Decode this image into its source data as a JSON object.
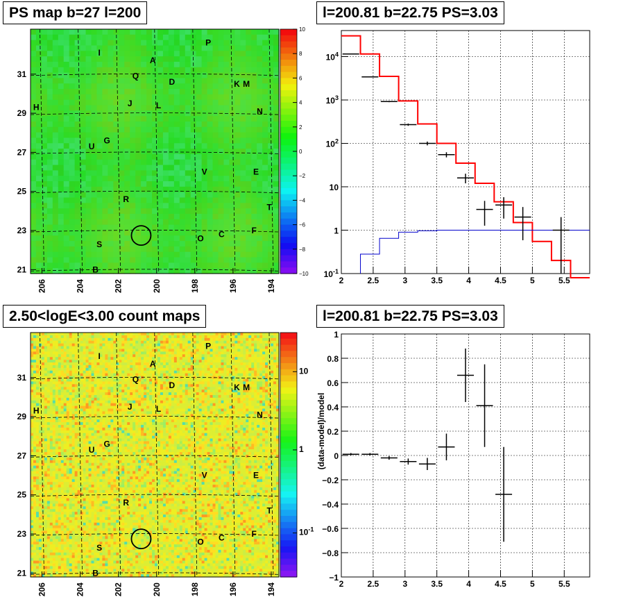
{
  "colors": {
    "map_green": "#33dd22",
    "count_yellow": "#ddee22",
    "model_red": "#ff0000",
    "bg_blue": "#0000cc",
    "data_black": "#000000"
  },
  "chart_data": [
    {
      "type": "heatmap",
      "title": "PS map b=27 l=200",
      "x_ticks": [
        "206",
        "204",
        "202",
        "200",
        "198",
        "196",
        "194"
      ],
      "y_ticks": [
        "31",
        "29",
        "27",
        "25",
        "23",
        "21"
      ],
      "colorbar_ticks": [
        "10",
        "8",
        "6",
        "4",
        "2",
        "0",
        "−2",
        "−4",
        "−6",
        "−8",
        "−10"
      ],
      "colorbar_range": [
        -10,
        10
      ],
      "sources": [
        {
          "label": "P",
          "l": 197.3,
          "b": 32.6
        },
        {
          "label": "I",
          "l": 203.0,
          "b": 32.1
        },
        {
          "label": "A",
          "l": 200.2,
          "b": 31.7
        },
        {
          "label": "Q",
          "l": 201.1,
          "b": 30.9
        },
        {
          "label": "D",
          "l": 199.2,
          "b": 30.6
        },
        {
          "label": "K",
          "l": 195.8,
          "b": 30.5
        },
        {
          "label": "M",
          "l": 195.3,
          "b": 30.5
        },
        {
          "label": "H",
          "l": 206.3,
          "b": 29.3
        },
        {
          "label": "J",
          "l": 201.4,
          "b": 29.5
        },
        {
          "label": "L",
          "l": 199.9,
          "b": 29.4
        },
        {
          "label": "N",
          "l": 194.6,
          "b": 29.1
        },
        {
          "label": "G",
          "l": 202.6,
          "b": 27.6
        },
        {
          "label": "U",
          "l": 203.4,
          "b": 27.3
        },
        {
          "label": "V",
          "l": 197.5,
          "b": 26.0
        },
        {
          "label": "E",
          "l": 194.8,
          "b": 26.0
        },
        {
          "label": "R",
          "l": 201.6,
          "b": 24.6
        },
        {
          "label": "T",
          "l": 194.1,
          "b": 24.2
        },
        {
          "label": "F",
          "l": 194.9,
          "b": 23.0
        },
        {
          "label": "C",
          "l": 196.6,
          "b": 22.8
        },
        {
          "label": "O",
          "l": 197.7,
          "b": 22.6
        },
        {
          "label": "S",
          "l": 203.0,
          "b": 22.3
        },
        {
          "label": "B",
          "l": 203.2,
          "b": 21.0
        }
      ],
      "circle": {
        "l": 200.81,
        "b": 22.75
      }
    },
    {
      "type": "line",
      "title": "l=200.81 b=22.75 PS=3.03",
      "xlabel": "",
      "ylabel": "",
      "x_ticks": [
        "2",
        "2.5",
        "3",
        "3.5",
        "4",
        "4.5",
        "5",
        "5.5"
      ],
      "y_ticks": [
        "10^4",
        "10^3",
        "10^2",
        "10",
        "1",
        "10^-1"
      ],
      "xlim": [
        2.0,
        5.9
      ],
      "ylim_log10": [
        -1,
        4.6
      ],
      "data_points": [
        {
          "x": 2.15,
          "y": 11500
        },
        {
          "x": 2.45,
          "y": 3400
        },
        {
          "x": 2.75,
          "y": 920
        },
        {
          "x": 3.05,
          "y": 270
        },
        {
          "x": 3.35,
          "y": 100
        },
        {
          "x": 3.65,
          "y": 55
        },
        {
          "x": 3.95,
          "y": 16
        },
        {
          "x": 4.25,
          "y": 3.0
        },
        {
          "x": 4.55,
          "y": 3.8
        },
        {
          "x": 4.85,
          "y": 2.0
        },
        {
          "x": 5.45,
          "y": 1.0
        }
      ],
      "model_steps": [
        {
          "x0": 2.0,
          "x1": 2.3,
          "y": 30000
        },
        {
          "x0": 2.3,
          "x1": 2.6,
          "y": 11500
        },
        {
          "x0": 2.6,
          "x1": 2.9,
          "y": 3500
        },
        {
          "x0": 2.9,
          "x1": 3.2,
          "y": 950
        },
        {
          "x0": 3.2,
          "x1": 3.5,
          "y": 280
        },
        {
          "x0": 3.5,
          "x1": 3.8,
          "y": 100
        },
        {
          "x0": 3.8,
          "x1": 4.1,
          "y": 35
        },
        {
          "x0": 4.1,
          "x1": 4.4,
          "y": 12
        },
        {
          "x0": 4.4,
          "x1": 4.7,
          "y": 4.5
        },
        {
          "x0": 4.7,
          "x1": 5.0,
          "y": 1.5
        },
        {
          "x0": 5.0,
          "x1": 5.3,
          "y": 0.55
        },
        {
          "x0": 5.3,
          "x1": 5.6,
          "y": 0.2
        },
        {
          "x0": 5.6,
          "x1": 5.9,
          "y": 0.08
        }
      ],
      "background_steps": [
        {
          "x0": 2.3,
          "x1": 2.6,
          "y": 0.28
        },
        {
          "x0": 2.6,
          "x1": 2.9,
          "y": 0.65
        },
        {
          "x0": 2.9,
          "x1": 3.2,
          "y": 0.9
        },
        {
          "x0": 3.2,
          "x1": 3.5,
          "y": 0.97
        },
        {
          "x0": 3.5,
          "x1": 5.9,
          "y": 1.0
        }
      ]
    },
    {
      "type": "heatmap",
      "title": "2.50<logE<3.00 count maps",
      "x_ticks": [
        "206",
        "204",
        "202",
        "200",
        "198",
        "196",
        "194"
      ],
      "y_ticks": [
        "31",
        "29",
        "27",
        "25",
        "23",
        "21"
      ],
      "colorbar_ticks": [
        "10",
        "1",
        "10^-1"
      ],
      "colorbar_scale": "log",
      "sources_same_as_panel": 1
    },
    {
      "type": "scatter",
      "title": "l=200.81 b=22.75 PS=3.03",
      "xlabel": "",
      "ylabel": "(data-model)/model",
      "x_ticks": [
        "2",
        "2.5",
        "3",
        "3.5",
        "4",
        "4.5",
        "5",
        "5.5"
      ],
      "y_ticks": [
        "1",
        "0.8",
        "0.6",
        "0.4",
        "0.2",
        "0",
        "−0.2",
        "−0.4",
        "−0.6",
        "−0.8",
        "−1"
      ],
      "xlim": [
        2.0,
        5.9
      ],
      "ylim": [
        -1,
        1
      ],
      "points": [
        {
          "x": 2.15,
          "y": 0.01,
          "ey": 0.01
        },
        {
          "x": 2.45,
          "y": 0.01,
          "ey": 0.01
        },
        {
          "x": 2.75,
          "y": -0.02,
          "ey": 0.015
        },
        {
          "x": 3.05,
          "y": -0.05,
          "ey": 0.025
        },
        {
          "x": 3.35,
          "y": -0.07,
          "ey": 0.05
        },
        {
          "x": 3.65,
          "y": 0.07,
          "ey": 0.11
        },
        {
          "x": 3.95,
          "y": 0.66,
          "ey": 0.22
        },
        {
          "x": 4.25,
          "y": 0.41,
          "ey": 0.34
        },
        {
          "x": 4.55,
          "y": -0.32,
          "ey": 0.39
        }
      ]
    }
  ]
}
